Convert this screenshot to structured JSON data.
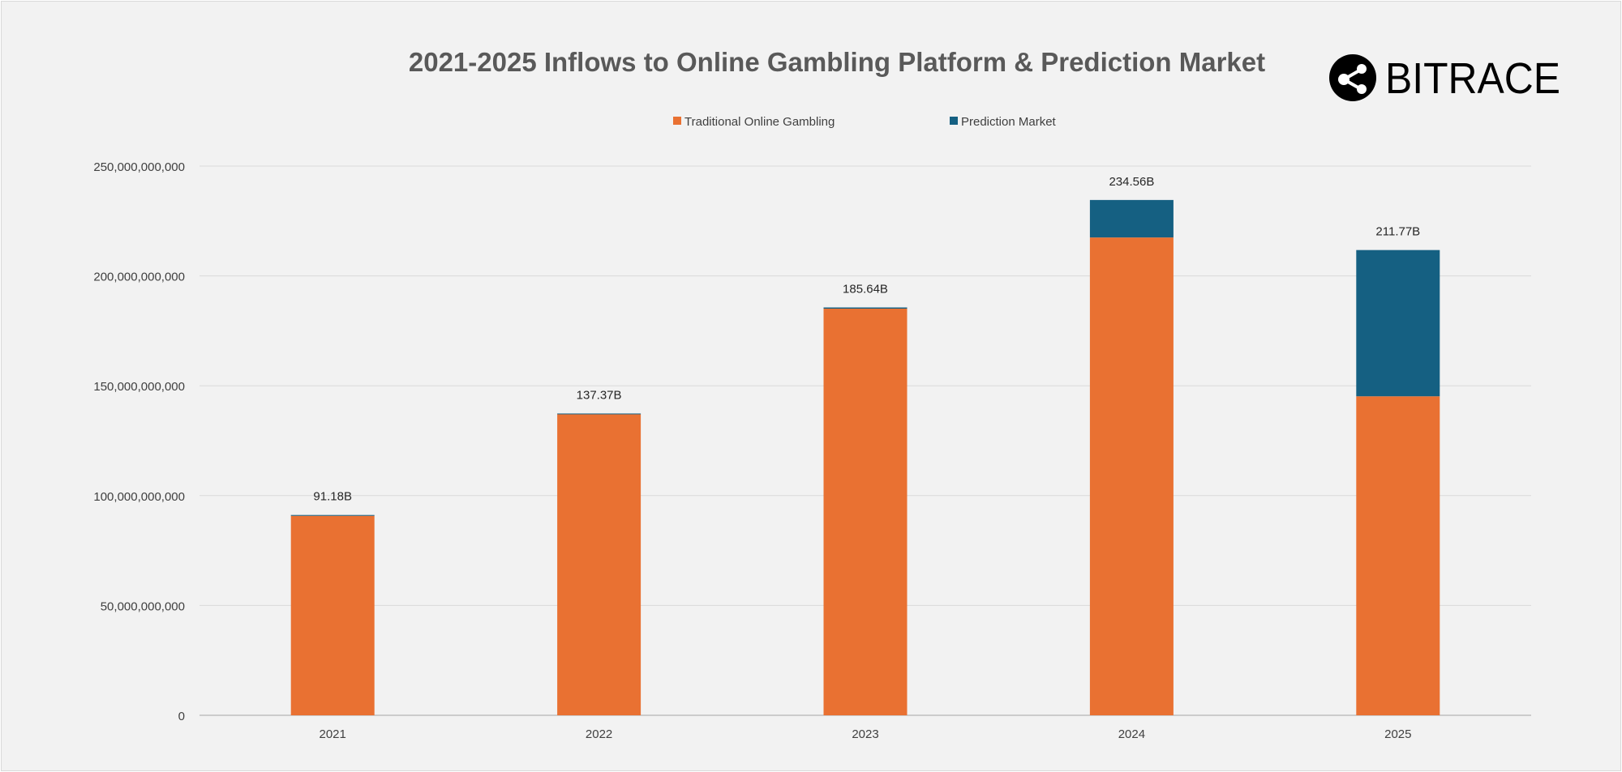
{
  "brand": {
    "name": "BITRACE",
    "logo_icon": "share-nodes-icon"
  },
  "chart_data": {
    "type": "bar",
    "stacked": true,
    "title": "2021-2025 Inflows to Online Gambling Platform & Prediction Market",
    "xlabel": "",
    "ylabel": "",
    "categories": [
      "2021",
      "2022",
      "2023",
      "2024",
      "2025"
    ],
    "series": [
      {
        "name": "Traditional Online Gambling",
        "color": "#e97132",
        "values": [
          90800000000,
          137000000000,
          185100000000,
          217500000000,
          145200000000
        ]
      },
      {
        "name": "Prediction Market",
        "color": "#156082",
        "values": [
          380000000,
          370000000,
          540000000,
          17060000000,
          66570000000
        ]
      }
    ],
    "totals_labels": [
      "91.18B",
      "137.37B",
      "185.64B",
      "234.56B",
      "211.77B"
    ],
    "ylim": [
      0,
      250000000000
    ],
    "yticks": [
      0,
      50000000000,
      100000000000,
      150000000000,
      200000000000,
      250000000000
    ],
    "ytick_labels": [
      "0",
      "50,000,000,000",
      "100,000,000,000",
      "150,000,000,000",
      "200,000,000,000",
      "250,000,000,000"
    ],
    "grid": true,
    "legend_position": "top"
  }
}
